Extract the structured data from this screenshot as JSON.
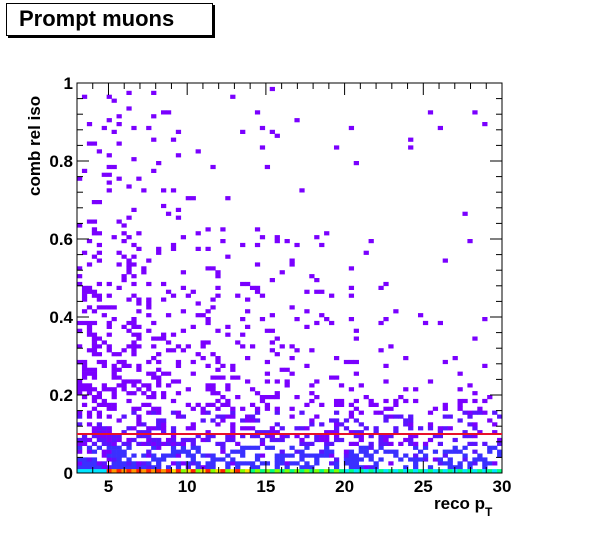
{
  "title": "Prompt muons",
  "chart_data": {
    "type": "heatmap",
    "title": "Prompt muons",
    "xlabel": "reco p",
    "xlabel_subscript": "T",
    "ylabel": "comb rel iso",
    "xlim": [
      3,
      30
    ],
    "ylim": [
      0,
      1
    ],
    "x_ticks": [
      5,
      10,
      15,
      20,
      25,
      30
    ],
    "y_ticks": [
      0,
      0.2,
      0.4,
      0.6,
      0.8,
      1
    ],
    "y_tick_labels": [
      "0",
      "0.2",
      "0.4",
      "0.6",
      "0.8",
      "1"
    ],
    "grid": false,
    "cut_line": {
      "y": 0.1,
      "color": "#e8102a"
    },
    "density_description": "counts concentrated at low isolation (<0.2) and low pT; sparse entries up to iso=1",
    "first_row_colors": [
      "#00e5ff",
      "#7fff00",
      "#ffe000",
      "#ff2200",
      "#ff9900",
      "#ff2200",
      "#ff9900",
      "#ffe000",
      "#7fff00",
      "#00ff80"
    ],
    "colors": {
      "sparse": "#7a00ff",
      "medium": "#5a14ff",
      "dense": "#3a30ff",
      "cut": "#e8102a"
    }
  }
}
